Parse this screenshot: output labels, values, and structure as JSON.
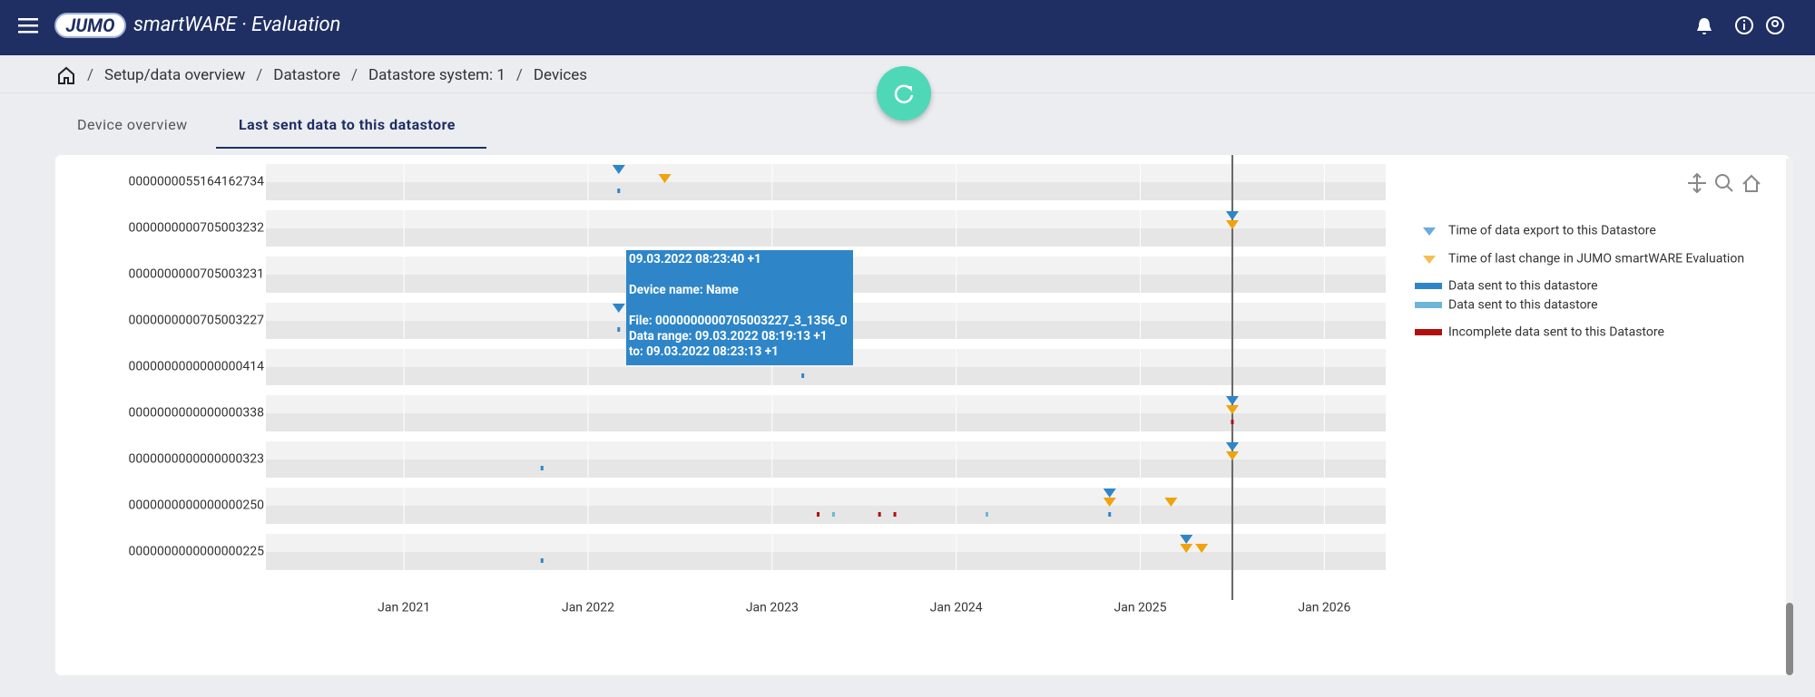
{
  "header": {
    "logo": "JUMO",
    "app": "smartWARE · Evaluation"
  },
  "breadcrumb": [
    "Setup/data overview",
    "Datastore",
    "Datastore system: 1",
    "Devices"
  ],
  "tabs": [
    "Device overview",
    "Last sent data to this datastore"
  ],
  "tooltip": [
    "09.03.2022 08:23:40 +1",
    "Device name: Name",
    "File: 0000000000705003227_3_1356_0",
    "Data range: 09.03.2022 08:19:13 +1",
    "to: 09.03.2022 08:23:13 +1"
  ],
  "chart_data": {
    "type": "timeline",
    "categories": [
      "0000000055164162734",
      "0000000000705003232",
      "0000000000705003231",
      "0000000000705003227",
      "0000000000000000414",
      "0000000000000000338",
      "0000000000000000323",
      "0000000000000000250",
      "0000000000000000225"
    ],
    "xlim": [
      "2020-04",
      "2026-05"
    ],
    "xticks": [
      {
        "value": "2021-01",
        "label": "Jan 2021"
      },
      {
        "value": "2022-01",
        "label": "Jan 2022"
      },
      {
        "value": "2023-01",
        "label": "Jan 2023"
      },
      {
        "value": "2024-01",
        "label": "Jan 2024"
      },
      {
        "value": "2025-01",
        "label": "Jan 2025"
      },
      {
        "value": "2026-01",
        "label": "Jan 2026"
      }
    ],
    "marker_line": "2025-07",
    "series": [
      {
        "name": "Time of data export to this Datastore",
        "color": "#2e86c9",
        "symbol": "triangle",
        "x": [
          "2022-03",
          "2025-07",
          "2022-03",
          "2025-07",
          "2025-07",
          "2024-11",
          "2025-04"
        ],
        "y": [
          "0000000055164162734",
          "0000000000705003232",
          "0000000000705003227",
          "0000000000000000338",
          "0000000000000000323",
          "0000000000000000250",
          "0000000000000000225"
        ]
      },
      {
        "name": "Time of last change in JUMO smartWARE Evaluation",
        "color": "#f0a30a",
        "symbol": "triangle",
        "x": [
          "2022-06",
          "2025-07",
          "2025-07",
          "2025-07",
          "2024-11",
          "2025-03",
          "2025-04",
          "2025-05"
        ],
        "y": [
          "0000000055164162734",
          "0000000000705003232",
          "0000000000000000338",
          "0000000000000000323",
          "0000000000000000250",
          "0000000000000000250",
          "0000000000000000225",
          "0000000000000000225"
        ]
      },
      {
        "name": "Data sent to this datastore",
        "color": "#2e86c9",
        "symbol": "bar",
        "x": [
          "2022-03",
          "2022-03",
          "2023-03",
          "2021-10",
          "2024-11",
          "2021-10"
        ],
        "y": [
          "0000000055164162734",
          "0000000000705003227",
          "0000000000000000414",
          "0000000000000000323",
          "0000000000000000250",
          "0000000000000000225"
        ]
      },
      {
        "name": "Data sent to this datastore",
        "color": "#6fb6d6",
        "symbol": "bar",
        "x": [
          "2023-05",
          "2024-03"
        ],
        "y": [
          "0000000000000000250",
          "0000000000000000250"
        ]
      },
      {
        "name": "Incomplete data sent to this Datastore",
        "color": "#b01010",
        "symbol": "bar",
        "x": [
          "2023-04",
          "2023-08",
          "2023-09",
          "2025-07"
        ],
        "y": [
          "0000000000000000250",
          "0000000000000000250",
          "0000000000000000250",
          "0000000000000000338"
        ]
      }
    ]
  }
}
